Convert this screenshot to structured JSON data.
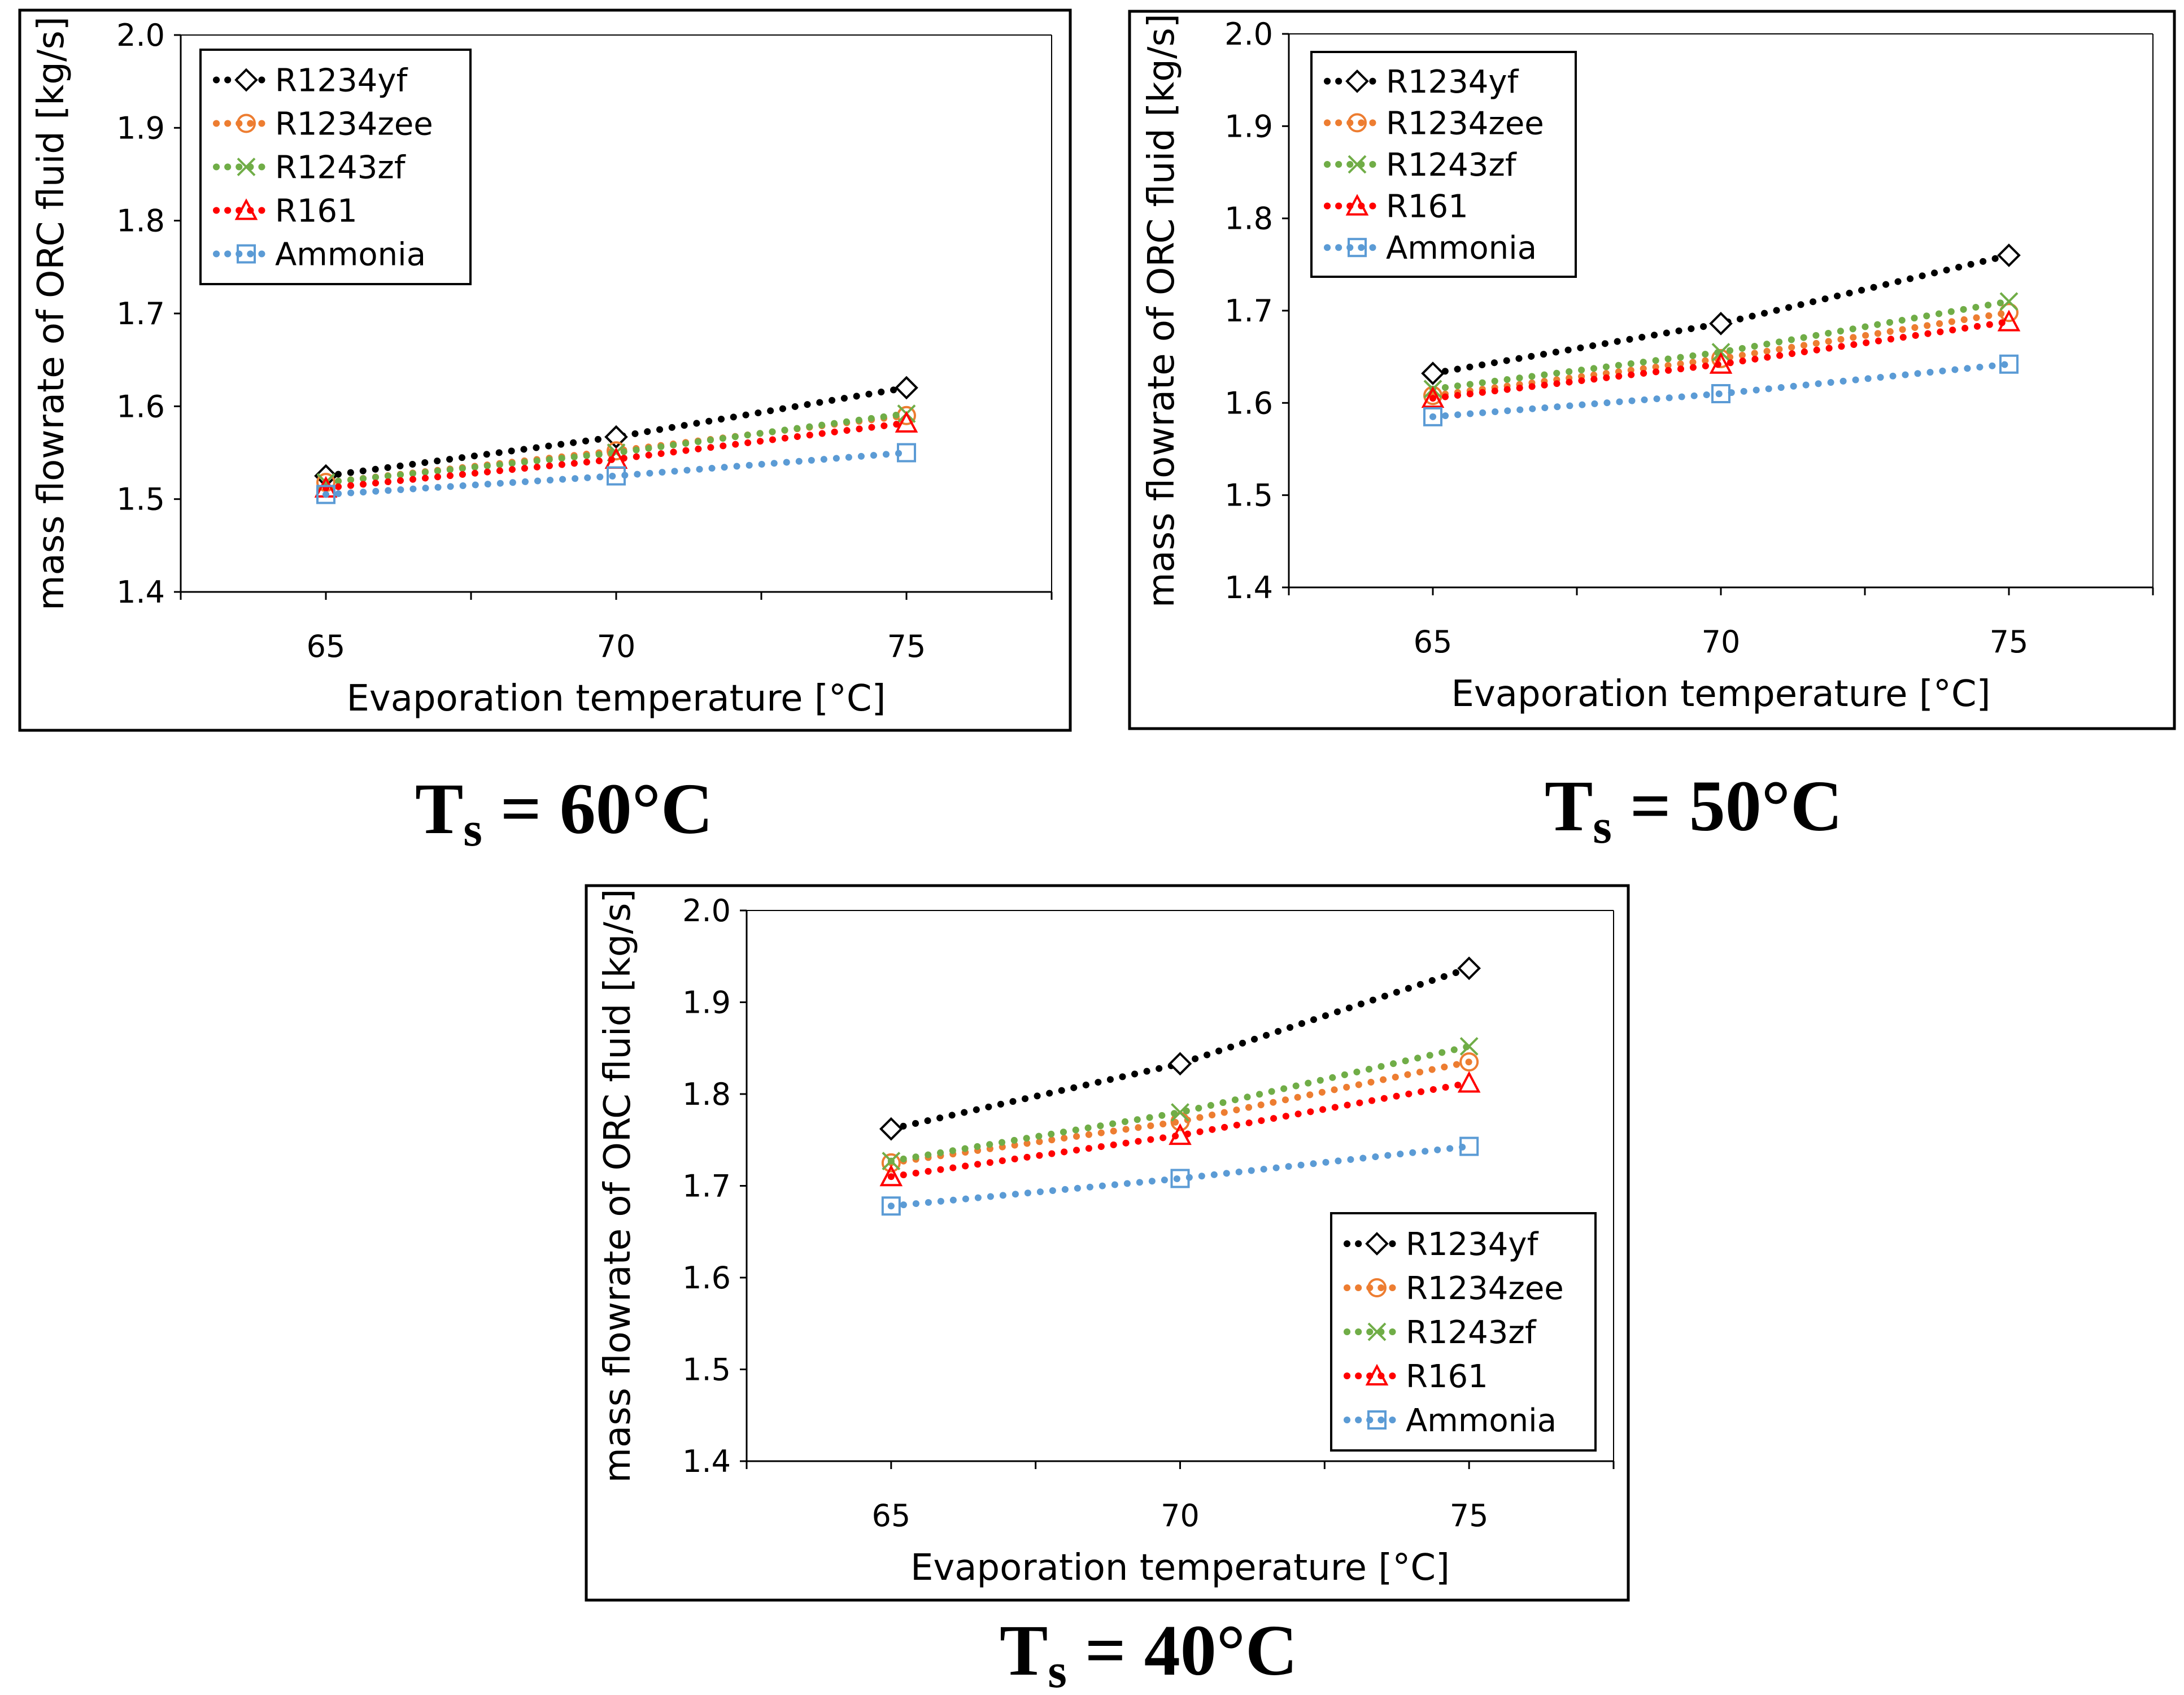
{
  "figure": {
    "panels": [
      {
        "caption": {
          "main": "T",
          "sub": "s",
          "rest": " = 60°C"
        }
      },
      {
        "caption": {
          "main": "T",
          "sub": "s",
          "rest": " = 50°C"
        }
      },
      {
        "caption": {
          "main": "T",
          "sub": "s",
          "rest": " = 40°C"
        }
      }
    ]
  },
  "chart_data": [
    {
      "type": "line",
      "title": "",
      "caption": "Ts = 60°C",
      "xlabel": "Evaporation temperature [°C]",
      "ylabel": "mass flowrate of ORC fluid [kg/s]",
      "xlim": [
        62.5,
        77.5
      ],
      "ylim": [
        1.4,
        2.0
      ],
      "x_ticks": [
        "65",
        "70",
        "75"
      ],
      "y_ticks": [
        "1.4",
        "1.5",
        "1.6",
        "1.7",
        "1.8",
        "1.9",
        "2.0"
      ],
      "legend_position": "top-left",
      "x": [
        65,
        70,
        75
      ],
      "series": [
        {
          "name": "R1234yf",
          "marker": "diamond",
          "color": "#000000",
          "values": [
            1.525,
            1.567,
            1.62
          ]
        },
        {
          "name": "R1234zee",
          "marker": "circle",
          "color": "#ED7D31",
          "values": [
            1.518,
            1.552,
            1.59
          ]
        },
        {
          "name": "R1243zf",
          "marker": "x",
          "color": "#70AD47",
          "values": [
            1.518,
            1.55,
            1.592
          ]
        },
        {
          "name": "R161",
          "marker": "triangle",
          "color": "#FF0000",
          "values": [
            1.512,
            1.543,
            1.582
          ]
        },
        {
          "name": "Ammonia",
          "marker": "square",
          "color": "#5B9BD5",
          "values": [
            1.505,
            1.525,
            1.55
          ]
        }
      ]
    },
    {
      "type": "line",
      "title": "",
      "caption": "Ts = 50°C",
      "xlabel": "Evaporation temperature [°C]",
      "ylabel": "mass flowrate of ORC fluid [kg/s]",
      "xlim": [
        62.5,
        77.5
      ],
      "ylim": [
        1.4,
        2.0
      ],
      "x_ticks": [
        "65",
        "70",
        "75"
      ],
      "y_ticks": [
        "1.4",
        "1.5",
        "1.6",
        "1.7",
        "1.8",
        "1.9",
        "2.0"
      ],
      "legend_position": "top-left",
      "x": [
        65,
        70,
        75
      ],
      "series": [
        {
          "name": "R1234yf",
          "marker": "diamond",
          "color": "#000000",
          "values": [
            1.632,
            1.686,
            1.76
          ]
        },
        {
          "name": "R1234zee",
          "marker": "circle",
          "color": "#ED7D31",
          "values": [
            1.608,
            1.648,
            1.698
          ]
        },
        {
          "name": "R1243zf",
          "marker": "x",
          "color": "#70AD47",
          "values": [
            1.615,
            1.655,
            1.71
          ]
        },
        {
          "name": "R161",
          "marker": "triangle",
          "color": "#FF0000",
          "values": [
            1.605,
            1.642,
            1.688
          ]
        },
        {
          "name": "Ammonia",
          "marker": "square",
          "color": "#5B9BD5",
          "values": [
            1.585,
            1.61,
            1.642
          ]
        }
      ]
    },
    {
      "type": "line",
      "title": "",
      "caption": "Ts = 40°C",
      "xlabel": "Evaporation temperature [°C]",
      "ylabel": "mass flowrate of ORC fluid [kg/s]",
      "xlim": [
        62.5,
        77.5
      ],
      "ylim": [
        1.4,
        2.0
      ],
      "x_ticks": [
        "65",
        "70",
        "75"
      ],
      "y_ticks": [
        "1.4",
        "1.5",
        "1.6",
        "1.7",
        "1.8",
        "1.9",
        "2.0"
      ],
      "legend_position": "bottom-right",
      "x": [
        65,
        70,
        75
      ],
      "series": [
        {
          "name": "R1234yf",
          "marker": "diamond",
          "color": "#000000",
          "values": [
            1.762,
            1.833,
            1.937
          ]
        },
        {
          "name": "R1234zee",
          "marker": "circle",
          "color": "#ED7D31",
          "values": [
            1.725,
            1.77,
            1.835
          ]
        },
        {
          "name": "R1243zf",
          "marker": "x",
          "color": "#70AD47",
          "values": [
            1.727,
            1.78,
            1.852
          ]
        },
        {
          "name": "R161",
          "marker": "triangle",
          "color": "#FF0000",
          "values": [
            1.71,
            1.755,
            1.812
          ]
        },
        {
          "name": "Ammonia",
          "marker": "square",
          "color": "#5B9BD5",
          "values": [
            1.678,
            1.708,
            1.743
          ]
        }
      ]
    }
  ]
}
